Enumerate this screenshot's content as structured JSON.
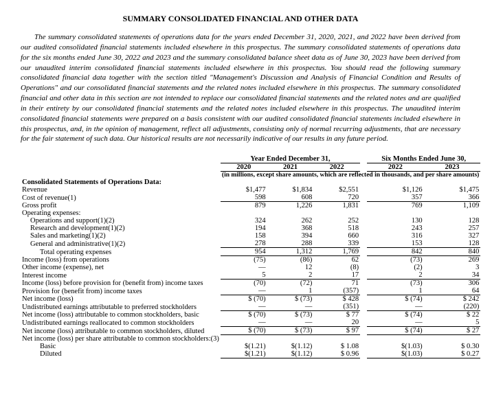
{
  "title": "SUMMARY CONSOLIDATED FINANCIAL AND OTHER DATA",
  "intro": "The summary consolidated statements of operations data for the years ended December 31, 2020, 2021, and 2022 have been derived from our audited consolidated financial statements included elsewhere in this prospectus. The summary consolidated statements of operations data for the six months ended June 30, 2022 and 2023 and the summary consolidated balance sheet data as of June 30, 2023 have been derived from our unaudited interim consolidated financial statements included elsewhere in this prospectus. You should read the following summary consolidated financial data together with the section titled \"Management's Discussion and Analysis of Financial Condition and Results of Operations\" and our consolidated financial statements and the related notes included elsewhere in this prospectus. The summary consolidated financial and other data in this section are not intended to replace our consolidated financial statements and the related notes and are qualified in their entirety by our consolidated financial statements and the related notes included elsewhere in this prospectus. The unaudited interim consolidated financial statements were prepared on a basis consistent with our audited consolidated financial statements included elsewhere in this prospectus, and, in the opinion of management, reflect all adjustments, consisting only of normal recurring adjustments, that are necessary for the fair statement of such data. Our historical results are not necessarily indicative of our results in any future period.",
  "hdr": {
    "yeGroup": "Year Ended December 31,",
    "smGroup": "Six Months Ended June 30,",
    "y2020": "2020",
    "y2021": "2021",
    "y2022": "2022",
    "s2022": "2022",
    "s2023": "2023",
    "note": "(in millions, except share amounts, which are reflected in thousands, and per share amounts)"
  },
  "sec": "Consolidated Statements of Operations Data:",
  "rows": {
    "rev": {
      "l": "Revenue",
      "v": [
        "$1,477",
        "$1,834",
        "$2,551",
        "$1,126",
        "$1,475"
      ]
    },
    "cost": {
      "l": "Cost of revenue(1)",
      "v": [
        "598",
        "608",
        "720",
        "357",
        "366"
      ],
      "u": true
    },
    "gp": {
      "l": "Gross profit",
      "v": [
        "879",
        "1,226",
        "1,831",
        "769",
        "1,109"
      ]
    },
    "oe": {
      "l": "Operating expenses:"
    },
    "ops": {
      "l": "Operations and support(1)(2)",
      "v": [
        "324",
        "262",
        "252",
        "130",
        "128"
      ]
    },
    "rd": {
      "l": "Research and development(1)(2)",
      "v": [
        "194",
        "368",
        "518",
        "243",
        "257"
      ]
    },
    "sm": {
      "l": "Sales and marketing(1)(2)",
      "v": [
        "158",
        "394",
        "660",
        "316",
        "327"
      ]
    },
    "ga": {
      "l": "General and administrative(1)(2)",
      "v": [
        "278",
        "288",
        "339",
        "153",
        "128"
      ],
      "u": true
    },
    "toe": {
      "l": "Total operating expenses",
      "v": [
        "954",
        "1,312",
        "1,769",
        "842",
        "840"
      ],
      "u": true
    },
    "ilo": {
      "l": "Income (loss) from operations",
      "v": [
        "(75)",
        "(86)",
        "62",
        "(73)",
        "269"
      ]
    },
    "oie": {
      "l": "Other income (expense), net",
      "v": [
        "—",
        "12",
        "(8)",
        "(2)",
        "3"
      ]
    },
    "ii": {
      "l": "Interest income",
      "v": [
        "5",
        "2",
        "17",
        "2",
        "34"
      ],
      "u": true
    },
    "ilbt": {
      "l": "Income (loss) before provision for (benefit from) income taxes",
      "v": [
        "(70)",
        "(72)",
        "71",
        "(73)",
        "306"
      ]
    },
    "prov": {
      "l": "Provision for (benefit from) income taxes",
      "v": [
        "—",
        "1",
        "(357)",
        "1",
        "64"
      ],
      "u": true
    },
    "nil": {
      "l": "Net income (loss)",
      "v": [
        "$   (70)",
        "$   (73)",
        "$  428",
        "$   (74)",
        "$  242"
      ]
    },
    "upref": {
      "l": "Undistributed earnings attributable to preferred stockholders",
      "v": [
        "—",
        "—",
        "(351)",
        "—",
        "(220)"
      ],
      "u": true
    },
    "nib": {
      "l": "Net income (loss) attributable to common stockholders, basic",
      "v": [
        "$   (70)",
        "$   (73)",
        "$    77",
        "$   (74)",
        "$    22"
      ]
    },
    "ure": {
      "l": "Undistributed earnings reallocated to common stockholders",
      "v": [
        "—",
        "—",
        "20",
        "—",
        "5"
      ],
      "u": true
    },
    "nid": {
      "l": "Net income (loss) attributable to common stockholders, diluted",
      "v": [
        "$   (70)",
        "$   (73)",
        "$    97",
        "$   (74)",
        "$    27"
      ],
      "u": true
    },
    "nps": {
      "l": "Net income (loss) per share attributable to common stockholders:(3)"
    },
    "bas": {
      "l": "Basic",
      "v": [
        "$(1.21)",
        "$(1.12)",
        "$ 1.08",
        "$(1.03)",
        "$ 0.30"
      ]
    },
    "dil": {
      "l": "Diluted",
      "v": [
        "$(1.21)",
        "$(1.12)",
        "$ 0.96",
        "$(1.03)",
        "$ 0.27"
      ],
      "u": true
    }
  }
}
